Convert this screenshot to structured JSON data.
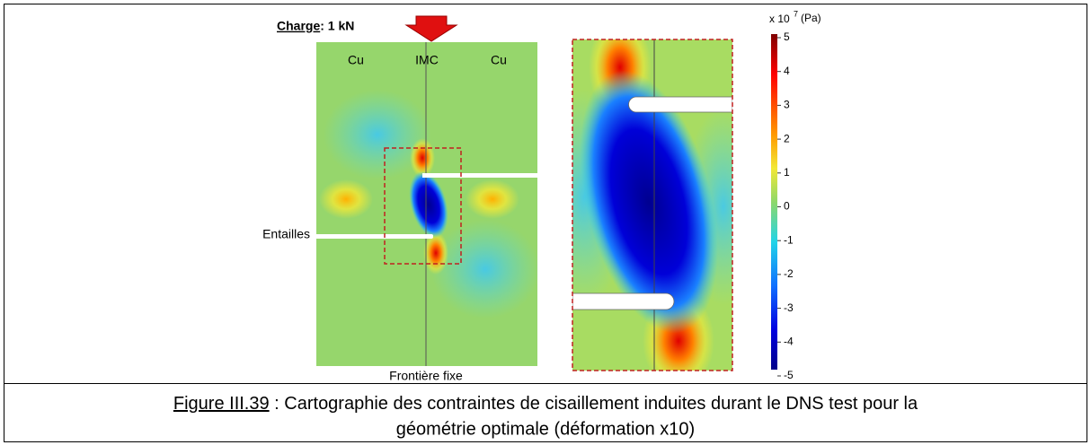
{
  "figure": {
    "load": {
      "label": "Charge",
      "value": " : 1 kN"
    },
    "materials": [
      "Cu",
      "IMC",
      "Cu"
    ],
    "notch_label": "Entailles",
    "boundary_label": "Frontière fixe",
    "colorbar": {
      "multiplier": "x 10",
      "exponent": "7",
      "unit": "(Pa)",
      "ticks": [
        5,
        4,
        3,
        2,
        1,
        0,
        -1,
        -2,
        -3,
        -4,
        -5
      ]
    }
  },
  "caption": {
    "label": "Figure III.39",
    "line1": " : Cartographie des contraintes de cisaillement induites durant le DNS test pour la",
    "line2": "géométrie optimale (déformation x10)"
  }
}
